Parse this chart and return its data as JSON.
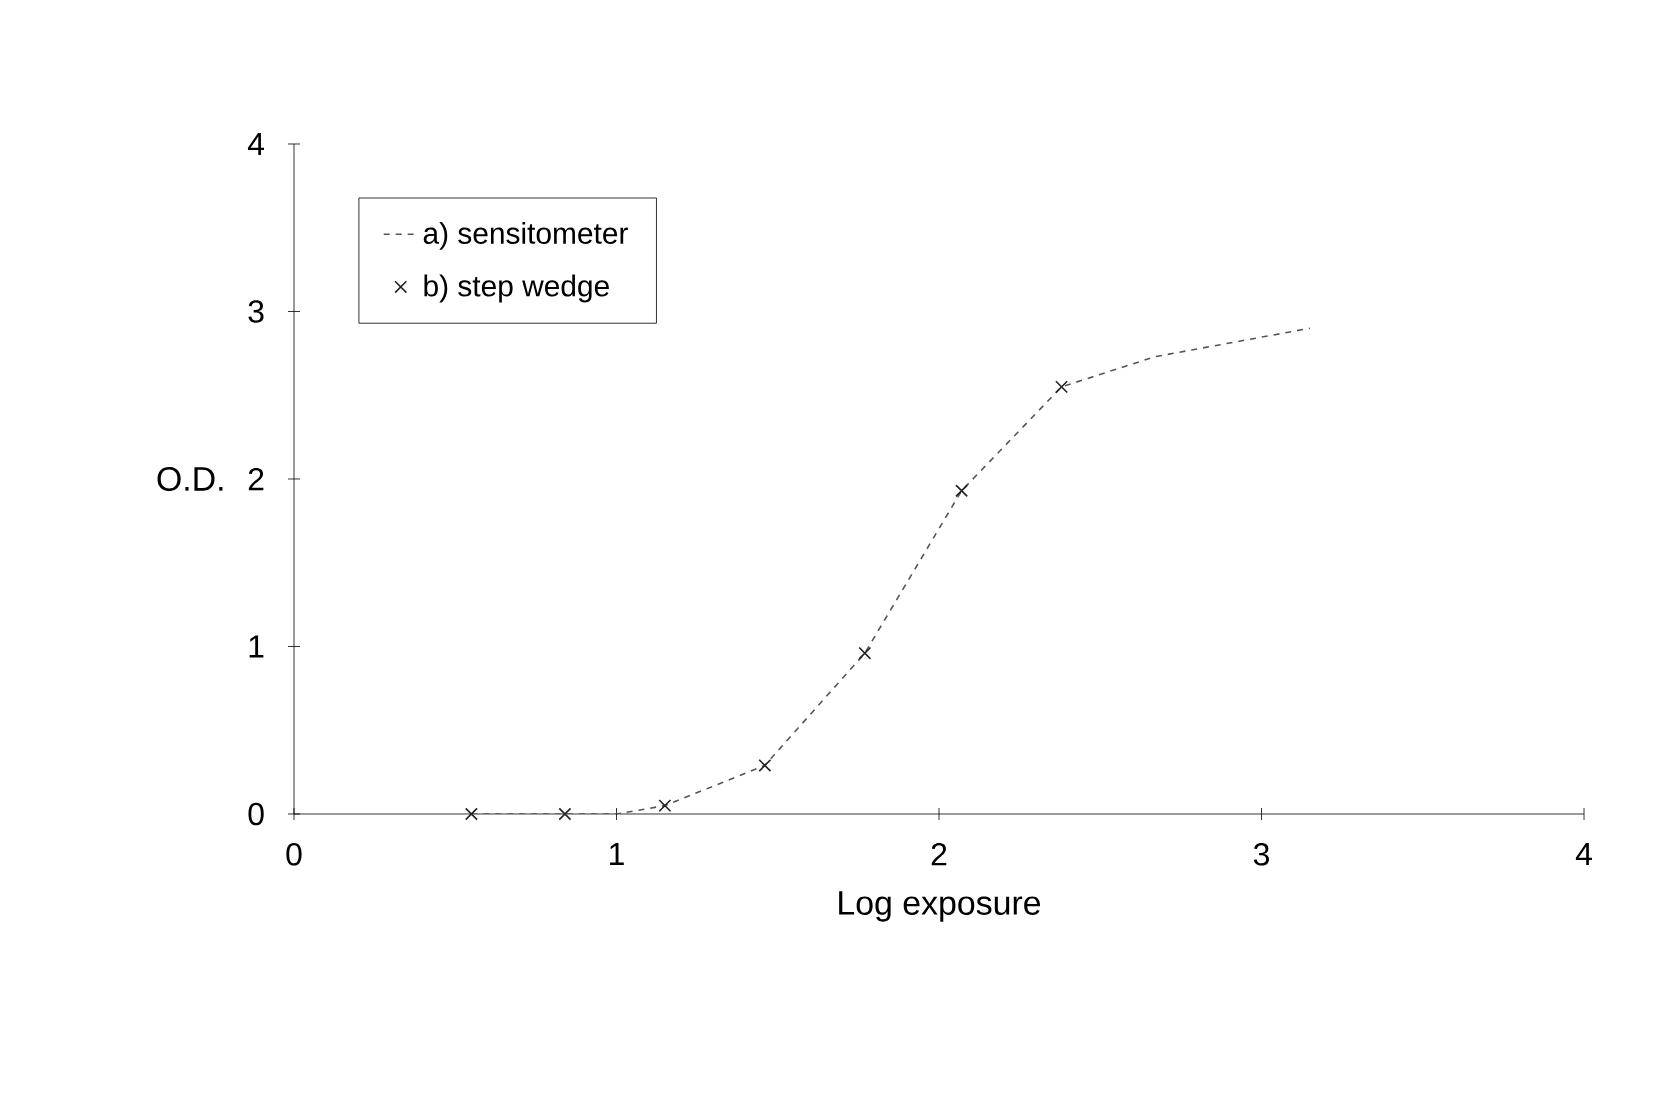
{
  "chart_data": {
    "type": "line",
    "xlabel": "Log exposure",
    "ylabel": "O.D.",
    "xlim": [
      0,
      4
    ],
    "ylim": [
      0,
      4
    ],
    "xticks": [
      0,
      1,
      2,
      3,
      4
    ],
    "yticks": [
      0,
      1,
      2,
      3,
      4
    ],
    "legend": "top left",
    "series": [
      {
        "name": "a) sensitometer",
        "color": "#555555",
        "line_style": "dashed",
        "marker": "none",
        "x": [
          0.55,
          0.84,
          1.0,
          1.15,
          1.46,
          1.77,
          2.07,
          2.38,
          2.67,
          3.15
        ],
        "values": [
          0,
          0,
          0,
          0.05,
          0.29,
          0.96,
          1.93,
          2.55,
          2.73,
          2.9
        ]
      },
      {
        "name": "b) step wedge",
        "type": "scatter",
        "color": "#222222",
        "marker": "cross",
        "x": [
          0.55,
          0.84,
          1.15,
          1.46,
          1.77,
          2.07,
          2.38
        ],
        "values": [
          0,
          0,
          0.05,
          0.29,
          0.96,
          1.93,
          2.55
        ]
      }
    ]
  }
}
